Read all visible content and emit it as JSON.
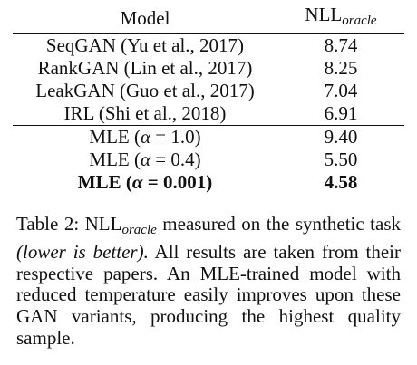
{
  "table": {
    "headers": {
      "model": "Model",
      "nll_base": "NLL",
      "nll_sub": "oracle"
    },
    "gan_rows": [
      {
        "model": "SeqGAN (Yu et al., 2017)",
        "nll": "8.74"
      },
      {
        "model": "RankGAN (Lin et al., 2017)",
        "nll": "8.25"
      },
      {
        "model": "LeakGAN (Guo et al., 2017)",
        "nll": "7.04"
      },
      {
        "model": "IRL (Shi et al., 2018)",
        "nll": "6.91"
      }
    ],
    "mle_rows": [
      {
        "prefix": "MLE (",
        "alpha": "α",
        "eq": " = ",
        "value": "1.0",
        "suffix": ")",
        "nll": "9.40"
      },
      {
        "prefix": "MLE (",
        "alpha": "α",
        "eq": " = ",
        "value": "0.4",
        "suffix": ")",
        "nll": "5.50"
      },
      {
        "prefix": "MLE (",
        "alpha": "α",
        "eq": " = ",
        "value": "0.001",
        "suffix": ")",
        "nll": "4.58"
      }
    ]
  },
  "caption": {
    "label": "Table 2: NLL",
    "label_sub": "oracle",
    "part1": " measured on the synthetic task ",
    "italic": "(lower is better).",
    "part2": " All results are taken from their respective papers. An MLE-trained model with reduced temperature easily improves upon these GAN variants, producing the highest quality sample."
  }
}
